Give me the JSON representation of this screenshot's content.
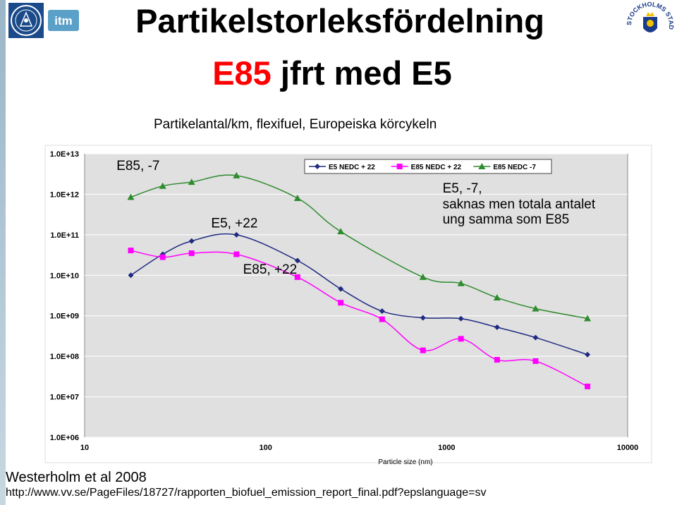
{
  "header": {
    "title_line1": "Partikelstorleksfördelning",
    "title_line2_accent": "E85",
    "title_line2_rest": "jfrt med E5",
    "subtitle": "Partikelantal/km, flexifuel, Europeiska körcykeln"
  },
  "logos": {
    "left_text": "itm",
    "right_text": "STOCKHOLMS STAD"
  },
  "footer": {
    "citation": "Westerholm et al 2008",
    "url": "http://www.vv.se/PageFiles/18727/rapporten_biofuel_emission_report_final.pdf?epslanguage=sv"
  },
  "chart_data": {
    "type": "line",
    "x_scale": "log",
    "y_scale": "log",
    "xlim": [
      10,
      10000
    ],
    "ylim": [
      1000000.0,
      10000000000000.0
    ],
    "x_ticks": [
      "10",
      "100",
      "1000",
      "10000"
    ],
    "y_ticks": [
      "1.0E+06",
      "1.0E+07",
      "1.0E+08",
      "1.0E+09",
      "1.0E+10",
      "1.0E+11",
      "1.0E+12",
      "1.0E+13"
    ],
    "xlabel": "Particle size (nm)",
    "legend_position": "top-right",
    "series": [
      {
        "name": "E5 NEDC + 22",
        "color": "#1f2a80",
        "marker": "diamond",
        "x": [
          18,
          27,
          39,
          69,
          150,
          260,
          440,
          740,
          1200,
          1900,
          3100,
          6000
        ],
        "y": [
          10000000000.0,
          33000000000.0,
          70000000000.0,
          100000000000.0,
          23000000000.0,
          4600000000.0,
          1300000000.0,
          890000000.0,
          850000000.0,
          520000000.0,
          290000000.0,
          110000000.0
        ]
      },
      {
        "name": "E85 NEDC + 22",
        "color": "#ff00ff",
        "marker": "square",
        "x": [
          18,
          27,
          39,
          69,
          150,
          260,
          440,
          740,
          1200,
          1900,
          3100,
          6000
        ],
        "y": [
          41000000000.0,
          28000000000.0,
          35000000000.0,
          33000000000.0,
          9000000000.0,
          2100000000.0,
          820000000.0,
          140000000.0,
          270000000.0,
          82000000.0,
          76000000.0,
          18000000.0
        ]
      },
      {
        "name": "E85 NEDC -7",
        "color": "#2e8b2e",
        "marker": "triangle",
        "x": [
          18,
          27,
          39,
          69,
          150,
          260,
          740,
          1200,
          1900,
          3100,
          6000
        ],
        "y": [
          850000000000.0,
          1600000000000.0,
          2000000000000.0,
          2900000000000.0,
          800000000000.0,
          120000000000.0,
          9000000000.0,
          6300000000.0,
          2800000000.0,
          1500000000.0,
          860000000.0
        ]
      }
    ],
    "annotations": [
      {
        "text": "E85, -7",
        "x": 15,
        "y": 4000000000000.0
      },
      {
        "text": "E5, +22",
        "x": 50,
        "y": 150000000000.0
      },
      {
        "text": "E85, +22",
        "x": 75,
        "y": 11000000000.0
      },
      {
        "text": "E5, -7,",
        "x": 950,
        "y": 1100000000000.0
      },
      {
        "text": "saknas men totala antalet",
        "x": 950,
        "y": 450000000000.0
      },
      {
        "text": "ung samma som E85",
        "x": 950,
        "y": 190000000000.0
      }
    ]
  }
}
